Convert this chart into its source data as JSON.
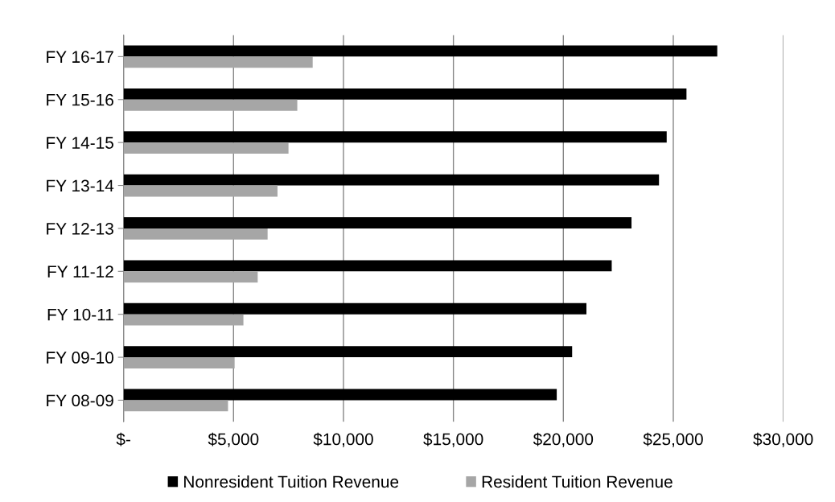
{
  "chart_data": {
    "type": "bar",
    "orientation": "horizontal",
    "categories": [
      "FY 16-17",
      "FY 15-16",
      "FY 14-15",
      "FY 13-14",
      "FY 12-13",
      "FY 11-12",
      "FY 10-11",
      "FY 09-10",
      "FY 08-09"
    ],
    "series": [
      {
        "name": "Nonresident Tuition Revenue",
        "color": "#000000",
        "values": [
          27000,
          25600,
          24700,
          24350,
          23100,
          22200,
          21050,
          20400,
          19700
        ]
      },
      {
        "name": "Resident Tuition Revenue",
        "color": "#a6a6a6",
        "values": [
          8600,
          7900,
          7500,
          7000,
          6550,
          6100,
          5450,
          5050,
          4750
        ]
      }
    ],
    "xlim": [
      0,
      30000
    ],
    "xticks": [
      {
        "value": 0,
        "label": "$-"
      },
      {
        "value": 5000,
        "label": "$5,000"
      },
      {
        "value": 10000,
        "label": "$10,000"
      },
      {
        "value": 15000,
        "label": "$15,000"
      },
      {
        "value": 20000,
        "label": "$20,000"
      },
      {
        "value": 25000,
        "label": "$25,000"
      },
      {
        "value": 30000,
        "label": "$30,000"
      }
    ],
    "grid": "x",
    "legend": "bottom"
  }
}
